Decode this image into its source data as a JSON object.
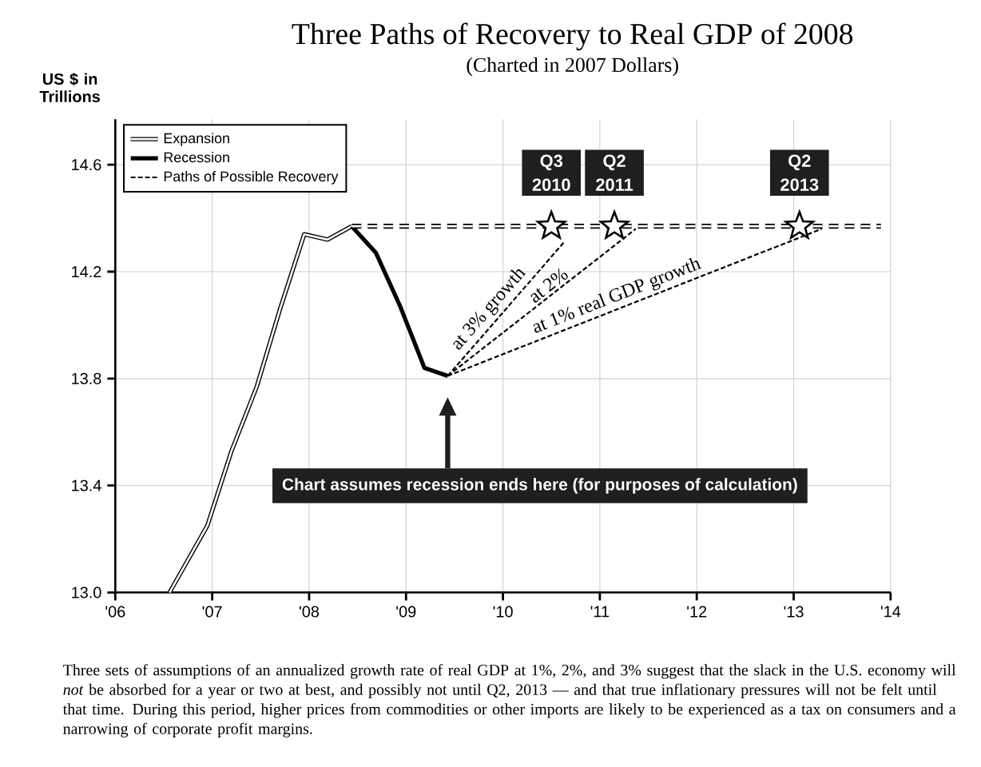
{
  "chart_data": {
    "type": "line",
    "title": "Three Paths of Recovery to Real GDP of 2008",
    "subtitle": "(Charted in 2007 Dollars)",
    "ylabel": "US $ in Trillions",
    "xlim": [
      2006,
      2014
    ],
    "ylim": [
      13.0,
      14.77
    ],
    "xticks": [
      {
        "value": 2006,
        "label": "'06"
      },
      {
        "value": 2007,
        "label": "'07"
      },
      {
        "value": 2008,
        "label": "'08"
      },
      {
        "value": 2009,
        "label": "'09"
      },
      {
        "value": 2010,
        "label": "'10"
      },
      {
        "value": 2011,
        "label": "'11"
      },
      {
        "value": 2012,
        "label": "'12"
      },
      {
        "value": 2013,
        "label": "'13"
      },
      {
        "value": 2014,
        "label": "'14"
      }
    ],
    "yticks": [
      {
        "value": 13.0,
        "label": "13.0"
      },
      {
        "value": 13.4,
        "label": "13.4"
      },
      {
        "value": 13.8,
        "label": "13.8"
      },
      {
        "value": 14.2,
        "label": "14.2"
      },
      {
        "value": 14.6,
        "label": "14.6"
      }
    ],
    "grid": true,
    "legend": "top left",
    "series": [
      {
        "name": "Expansion",
        "color": "#000000",
        "line_style": "solid",
        "x": [
          2006.56,
          2006.95,
          2007.2,
          2007.46,
          2007.7,
          2007.95,
          2008.19,
          2008.44
        ],
        "values": [
          13.0,
          13.25,
          13.53,
          13.77,
          14.06,
          14.34,
          14.32,
          14.37
        ]
      },
      {
        "name": "Recession",
        "color": "#000000",
        "line_style": "solid",
        "x": [
          2008.44,
          2008.69,
          2008.94,
          2009.19,
          2009.43
        ],
        "values": [
          14.37,
          14.27,
          14.07,
          13.84,
          13.81
        ]
      },
      {
        "name": "Paths of Possible Recovery",
        "color": "#000000",
        "line_style": "dashed",
        "x": [
          2009.43,
          2010.63
        ],
        "values": [
          13.81,
          14.31
        ]
      },
      {
        "color": "#000000",
        "line_style": "dashed",
        "x": [
          2009.43,
          2011.37
        ],
        "values": [
          13.81,
          14.36
        ]
      },
      {
        "color": "#000000",
        "line_style": "dashed",
        "x": [
          2009.43,
          2013.29
        ],
        "values": [
          13.81,
          14.36
        ]
      },
      {
        "color": "#000000",
        "line_style": "dashed",
        "x": [
          2008.44,
          2013.9
        ],
        "values": [
          14.37,
          14.37
        ]
      },
      {
        "type": "scatter",
        "marker": "star",
        "color": "#000000",
        "x": [
          2010.5,
          2011.15,
          2013.06
        ],
        "values": [
          14.37,
          14.37,
          14.37
        ]
      }
    ],
    "annotations": [
      {
        "text": "Q3 2010",
        "x": 2010.5,
        "y": 14.37
      },
      {
        "text": "Q2 2011",
        "x": 2011.15,
        "y": 14.37
      },
      {
        "text": "Q2 2013",
        "x": 2013.06,
        "y": 14.37
      },
      {
        "text": "at 3% growth",
        "x": 2009.95,
        "y": 14.03
      },
      {
        "text": "at 2%",
        "x": 2010.53,
        "y": 14.12
      },
      {
        "text": "at 1% real GDP growth",
        "x": 2011.22,
        "y": 14.065
      },
      "Chart assumes recession ends here (for purposes of calculation)",
      "Three sets of assumptions of an annualized growth rate of real GDP at 1%, 2%, and 3% suggest that the slack in the U.S. economy will *not* be absorbed for a year or two at best, and possibly not until Q2, 2013 — and that true inflationary pressures will not be felt until that time. During this period, higher prices from commodities or other imports are likely to be experienced as a tax on consumers and a narrowing of corporate profit margins."
    ]
  }
}
